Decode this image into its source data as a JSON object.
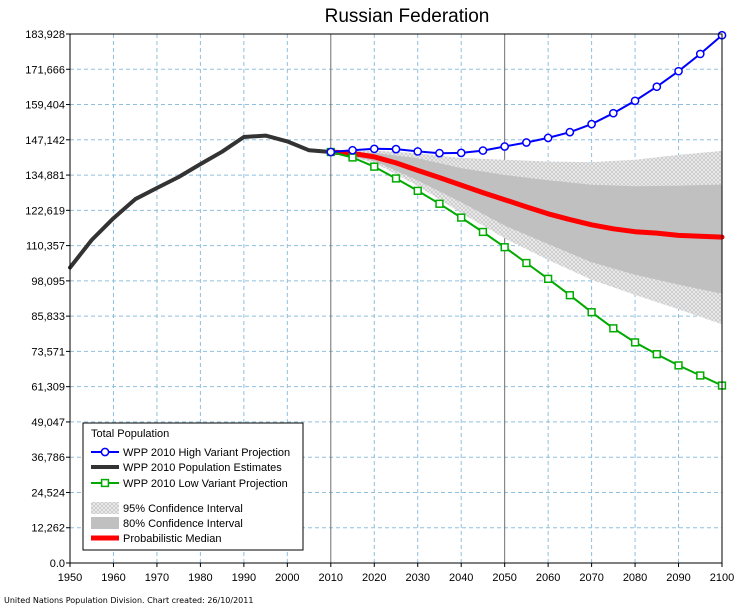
{
  "chart_data": {
    "type": "line",
    "title": "Russian Federation",
    "xlabel": "",
    "ylabel": "",
    "xlim": [
      1950,
      2100
    ],
    "ylim": [
      0,
      183928
    ],
    "x_ticks": [
      "1950",
      "1960",
      "1970",
      "1980",
      "1990",
      "2000",
      "2010",
      "2020",
      "2030",
      "2040",
      "2050",
      "2060",
      "2070",
      "2080",
      "2090",
      "2100"
    ],
    "y_ticks": [
      "0.0",
      "12,262",
      "24,524",
      "36,786",
      "49,047",
      "61,309",
      "73,571",
      "85,833",
      "98,095",
      "110,357",
      "122,619",
      "134,881",
      "147,142",
      "159,404",
      "171,666",
      "183,928"
    ],
    "grid": true,
    "legend_position": "bottom-left",
    "legend_title": "Total Population",
    "series": [
      {
        "name": "WPP 2010 High Variant Projection",
        "color": "#0000ff",
        "marker": "circle",
        "x": [
          2010,
          2015,
          2020,
          2025,
          2030,
          2035,
          2040,
          2045,
          2050,
          2055,
          2060,
          2065,
          2070,
          2075,
          2080,
          2085,
          2090,
          2095,
          2100
        ],
        "values": [
          142900,
          143500,
          144000,
          143900,
          143100,
          142500,
          142600,
          143400,
          144800,
          146200,
          147800,
          149800,
          152600,
          156400,
          160700,
          165600,
          171000,
          177000,
          183500
        ]
      },
      {
        "name": "WPP 2010 Population Estimates",
        "color": "#333333",
        "marker": "none",
        "x": [
          1950,
          1955,
          1960,
          1965,
          1970,
          1975,
          1980,
          1985,
          1990,
          1995,
          2000,
          2005,
          2010
        ],
        "values": [
          102700,
          112300,
          119900,
          126500,
          130400,
          134200,
          138700,
          143000,
          148100,
          148600,
          146600,
          143500,
          142900
        ]
      },
      {
        "name": "WPP 2010 Low Variant Projection",
        "color": "#00aa00",
        "marker": "square",
        "x": [
          2010,
          2015,
          2020,
          2025,
          2030,
          2035,
          2040,
          2045,
          2050,
          2055,
          2060,
          2065,
          2070,
          2075,
          2080,
          2085,
          2090,
          2095,
          2100
        ],
        "values": [
          142900,
          141000,
          137800,
          133700,
          129400,
          124900,
          120100,
          115100,
          109800,
          104300,
          98800,
          93100,
          87200,
          81600,
          76700,
          72600,
          68700,
          65200,
          61700
        ]
      },
      {
        "name": "Probabilistic Median",
        "color": "#ff0000",
        "marker": "none",
        "x": [
          2010,
          2015,
          2020,
          2025,
          2030,
          2035,
          2040,
          2045,
          2050,
          2055,
          2060,
          2065,
          2070,
          2075,
          2080,
          2085,
          2090,
          2095,
          2100
        ],
        "values": [
          142900,
          142400,
          141200,
          139100,
          136500,
          134000,
          131400,
          128800,
          126300,
          123800,
          121400,
          119400,
          117600,
          116200,
          115200,
          114700,
          113900,
          113600,
          113300
        ]
      }
    ],
    "bands": [
      {
        "name": "95% Confidence Interval",
        "color": "#dcdcdc",
        "pattern": "crosshatch",
        "x": [
          2010,
          2020,
          2030,
          2040,
          2050,
          2060,
          2070,
          2080,
          2090,
          2100
        ],
        "upper": [
          142900,
          143400,
          142400,
          140800,
          140200,
          139600,
          139400,
          140200,
          141900,
          143300
        ],
        "lower": [
          142900,
          139200,
          131100,
          121700,
          112900,
          105400,
          98500,
          93200,
          88200,
          83000
        ]
      },
      {
        "name": "80% Confidence Interval",
        "color": "#c0c0c0",
        "pattern": "solid",
        "x": [
          2010,
          2020,
          2030,
          2040,
          2050,
          2060,
          2070,
          2080,
          2090,
          2100
        ],
        "upper": [
          142900,
          142600,
          140700,
          137300,
          134900,
          133100,
          131500,
          131000,
          131200,
          131600
        ],
        "lower": [
          142900,
          139800,
          133000,
          125400,
          117300,
          110900,
          104600,
          100200,
          96800,
          93600
        ]
      }
    ],
    "legend_entries": [
      "WPP 2010 High Variant Projection",
      "WPP 2010 Population Estimates",
      "WPP 2010 Low Variant Projection",
      "95% Confidence Interval",
      "80% Confidence Interval",
      "Probabilistic Median"
    ],
    "footer": "United Nations Population Division.  Chart created:  26/10/2011"
  }
}
